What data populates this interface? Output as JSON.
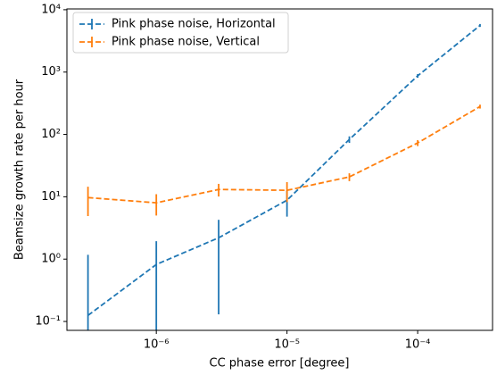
{
  "chart_data": {
    "type": "line",
    "log_x": true,
    "log_y": true,
    "x_label": "CC phase error [degree]",
    "y_label": "Beamsize growth rate per hour",
    "x": [
      3e-07,
      1e-06,
      3e-06,
      1e-05,
      3e-05,
      0.0001,
      0.0003
    ],
    "series": [
      {
        "name": "Pink phase noise, Horizontal",
        "color": "#1f77b4",
        "values": [
          0.125,
          0.82,
          2.2,
          8.8,
          83,
          870,
          5600
        ],
        "errors": [
          1.05,
          1.12,
          2.07,
          4,
          10,
          60,
          300
        ]
      },
      {
        "name": "Pink phase noise, Vertical",
        "color": "#ff7f0e",
        "values": [
          9.7,
          8.0,
          13.1,
          12.7,
          20.8,
          73,
          280
        ],
        "errors": [
          4.8,
          3,
          3,
          4.5,
          3,
          8,
          20
        ]
      }
    ],
    "xlim": [
      2.07e-07,
      0.000374
    ],
    "ylim": [
      0.072,
      10300
    ],
    "xticks": [
      {
        "value": 1e-06,
        "label": "10⁻⁶"
      },
      {
        "value": 1e-05,
        "label": "10⁻⁵"
      },
      {
        "value": 0.0001,
        "label": "10⁻⁴"
      }
    ],
    "yticks": [
      {
        "value": 0.1,
        "label": "10⁻¹"
      },
      {
        "value": 1,
        "label": "10⁰"
      },
      {
        "value": 10,
        "label": "10¹"
      },
      {
        "value": 100,
        "label": "10²"
      },
      {
        "value": 1000,
        "label": "10³"
      },
      {
        "value": 10000,
        "label": "10⁴"
      }
    ],
    "legend": "upper left",
    "line_style": "dashed"
  }
}
